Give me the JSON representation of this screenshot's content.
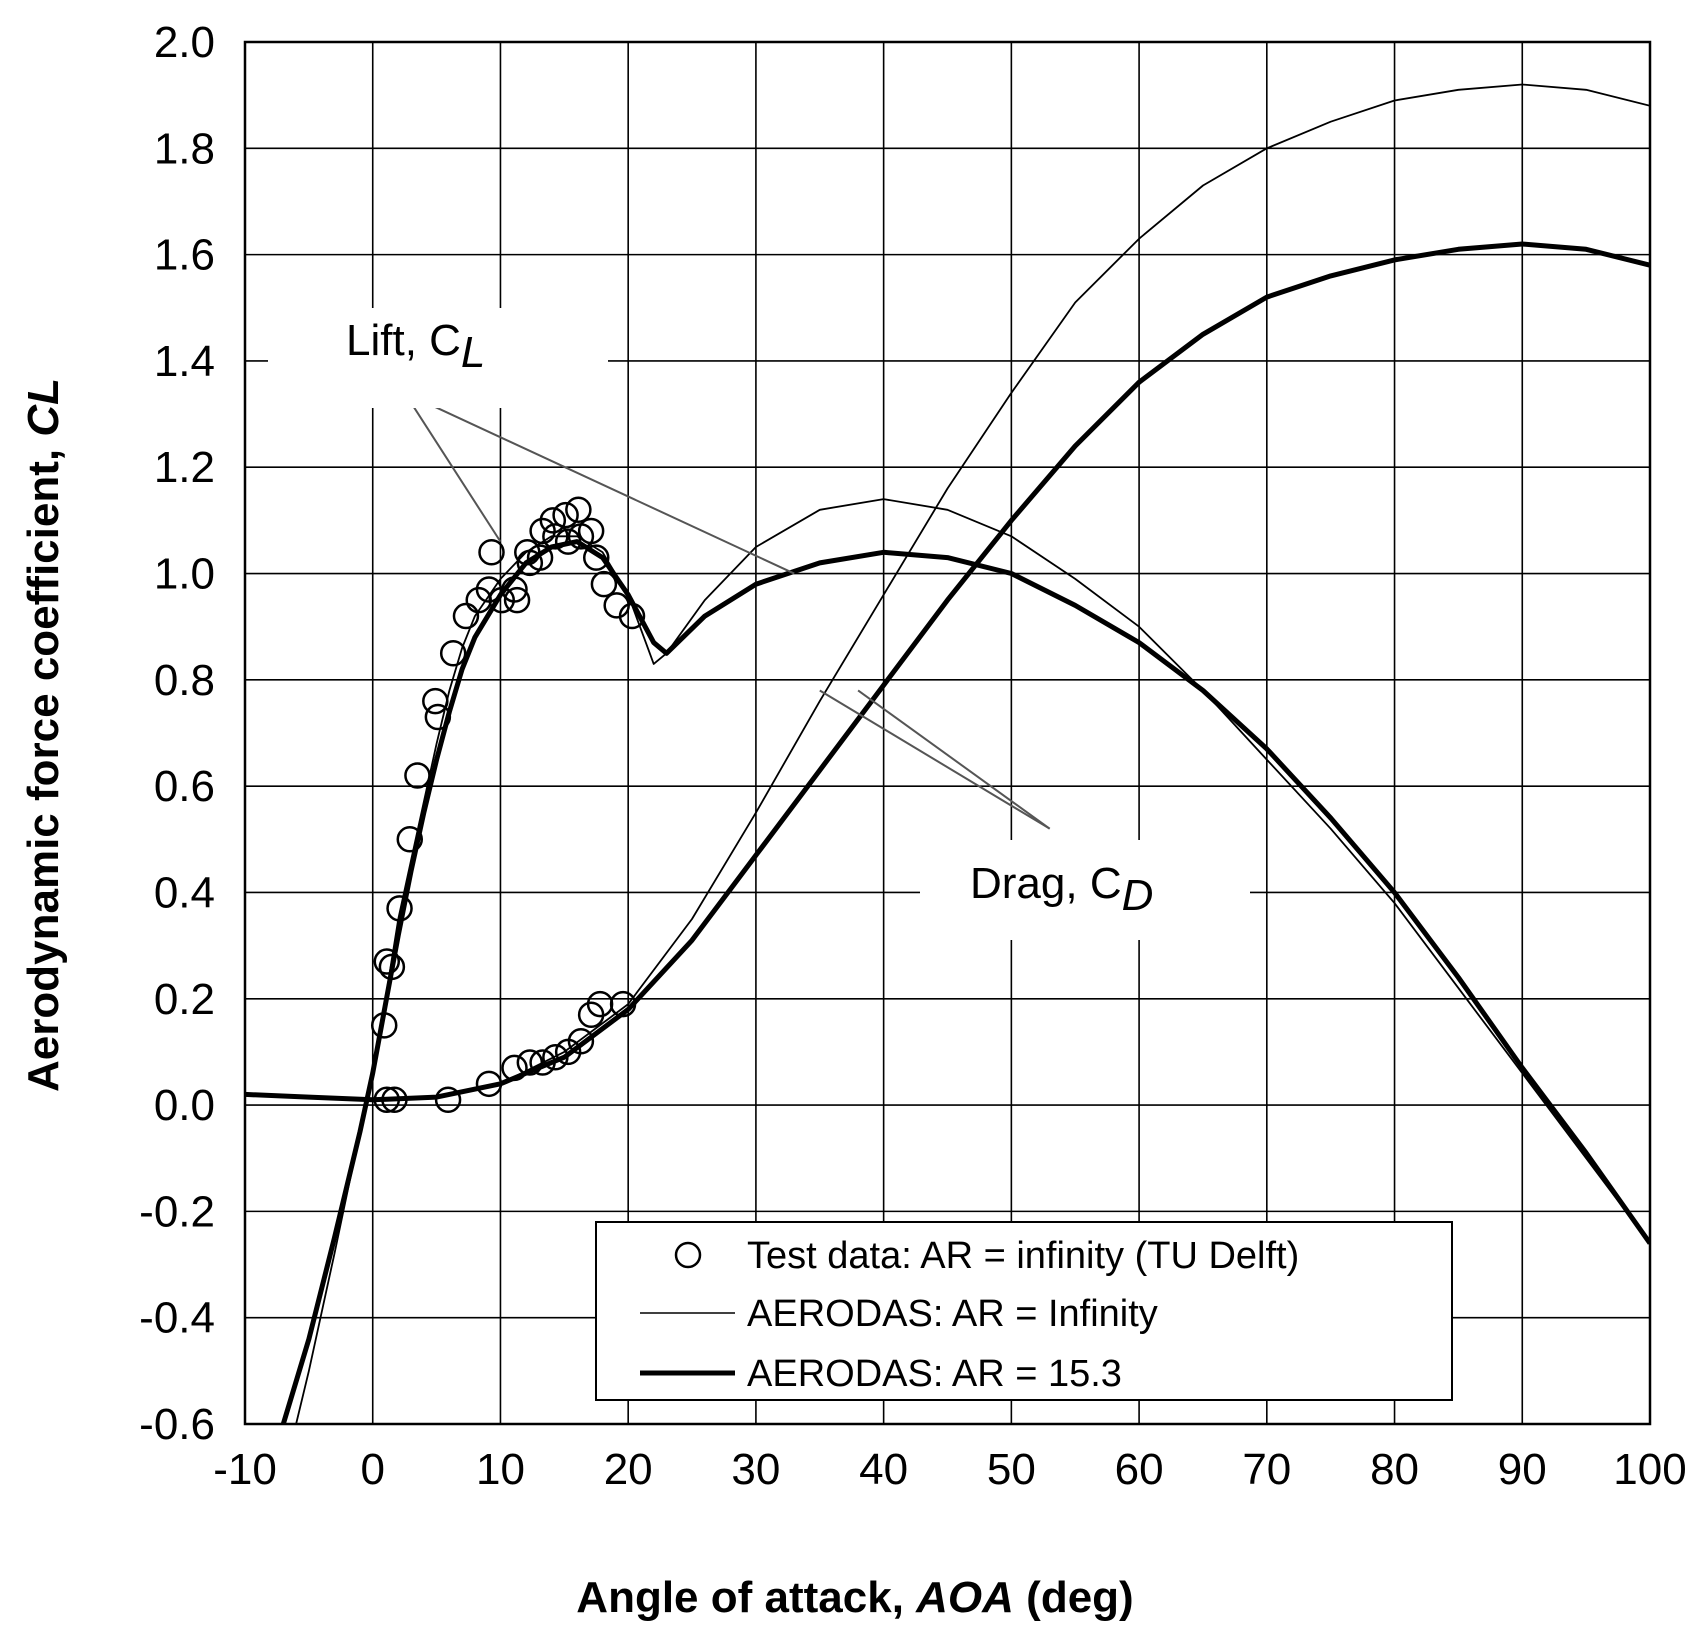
{
  "chart_data": {
    "type": "line",
    "xlabel": "Angle of attack,",
    "xlabel_var": "AOA",
    "xlabel_unit": "(deg)",
    "ylabel": "Aerodynamic force coefficient,",
    "ylabel_var": "CL",
    "xlim": [
      -10,
      100
    ],
    "ylim": [
      -0.6,
      2.0
    ],
    "xticks": [
      -10,
      0,
      10,
      20,
      30,
      40,
      50,
      60,
      70,
      80,
      90,
      100
    ],
    "xtick_labels": [
      "-10",
      "0",
      "10",
      "20",
      "30",
      "40",
      "50",
      "60",
      "70",
      "80",
      "90",
      "100"
    ],
    "yticks": [
      -0.6,
      -0.4,
      -0.2,
      0.0,
      0.2,
      0.4,
      0.6,
      0.8,
      1.0,
      1.2,
      1.4,
      1.6,
      1.8,
      2.0
    ],
    "ytick_labels": [
      "-0.6",
      "-0.4",
      "-0.2",
      "0.0",
      "0.2",
      "0.4",
      "0.6",
      "0.8",
      "1.0",
      "1.2",
      "1.4",
      "1.6",
      "1.8",
      "2.0"
    ],
    "grid": true,
    "annotations": {
      "lift": {
        "text": "Lift, C",
        "sub": "L"
      },
      "drag": {
        "text": "Drag, C",
        "sub": "D"
      }
    },
    "legend": {
      "position": "bottom-right",
      "entries": [
        {
          "label": "Test data: AR = infinity (TU Delft)",
          "style": "marker"
        },
        {
          "label": "AERODAS: AR = Infinity",
          "style": "thin-line"
        },
        {
          "label": "AERODAS: AR = 15.3",
          "style": "thick-line"
        }
      ]
    },
    "series": [
      {
        "name": "Test data: AR = infinity (TU Delft) - Lift",
        "style": "marker",
        "points": [
          [
            0.9,
            0.15
          ],
          [
            1.1,
            0.27
          ],
          [
            1.5,
            0.26
          ],
          [
            2.1,
            0.37
          ],
          [
            2.9,
            0.5
          ],
          [
            3.5,
            0.62
          ],
          [
            4.9,
            0.76
          ],
          [
            5.1,
            0.73
          ],
          [
            6.3,
            0.85
          ],
          [
            7.3,
            0.92
          ],
          [
            8.3,
            0.95
          ],
          [
            9.1,
            0.97
          ],
          [
            9.3,
            1.04
          ],
          [
            10.1,
            0.95
          ],
          [
            11.1,
            0.97
          ],
          [
            11.3,
            0.95
          ],
          [
            12.1,
            1.04
          ],
          [
            12.3,
            1.02
          ],
          [
            13.1,
            1.03
          ],
          [
            13.3,
            1.08
          ],
          [
            14.1,
            1.1
          ],
          [
            14.3,
            1.07
          ],
          [
            15.1,
            1.11
          ],
          [
            15.3,
            1.06
          ],
          [
            16.1,
            1.12
          ],
          [
            16.3,
            1.07
          ],
          [
            17.1,
            1.08
          ],
          [
            17.5,
            1.03
          ],
          [
            18.1,
            0.98
          ],
          [
            19.1,
            0.94
          ],
          [
            20.3,
            0.92
          ]
        ]
      },
      {
        "name": "Test data: AR = infinity (TU Delft) - Drag",
        "style": "marker",
        "points": [
          [
            1.1,
            0.01
          ],
          [
            1.7,
            0.01
          ],
          [
            5.9,
            0.01
          ],
          [
            9.1,
            0.04
          ],
          [
            11.1,
            0.07
          ],
          [
            12.3,
            0.08
          ],
          [
            13.3,
            0.08
          ],
          [
            14.3,
            0.09
          ],
          [
            15.3,
            0.1
          ],
          [
            16.3,
            0.12
          ],
          [
            17.1,
            0.17
          ],
          [
            17.8,
            0.19
          ],
          [
            19.6,
            0.19
          ]
        ]
      },
      {
        "name": "AERODAS: AR = Infinity - Lift",
        "style": "thin-line",
        "points": [
          [
            -6,
            -0.6
          ],
          [
            -5,
            -0.5
          ],
          [
            -3,
            -0.28
          ],
          [
            -1,
            -0.05
          ],
          [
            0,
            0.05
          ],
          [
            1,
            0.2
          ],
          [
            2,
            0.35
          ],
          [
            3,
            0.46
          ],
          [
            4,
            0.57
          ],
          [
            5,
            0.68
          ],
          [
            6,
            0.78
          ],
          [
            7,
            0.86
          ],
          [
            8,
            0.92
          ],
          [
            10,
            0.99
          ],
          [
            12,
            1.04
          ],
          [
            14,
            1.07
          ],
          [
            16,
            1.07
          ],
          [
            18,
            1.04
          ],
          [
            20,
            0.96
          ],
          [
            22,
            0.83
          ],
          [
            23,
            0.85
          ],
          [
            26,
            0.95
          ],
          [
            30,
            1.05
          ],
          [
            35,
            1.12
          ],
          [
            40,
            1.14
          ],
          [
            45,
            1.12
          ],
          [
            50,
            1.07
          ],
          [
            55,
            0.99
          ],
          [
            60,
            0.9
          ],
          [
            65,
            0.78
          ],
          [
            70,
            0.65
          ],
          [
            75,
            0.52
          ],
          [
            80,
            0.38
          ],
          [
            85,
            0.22
          ],
          [
            90,
            0.06
          ],
          [
            95,
            -0.1
          ],
          [
            100,
            -0.26
          ]
        ]
      },
      {
        "name": "AERODAS: AR = 15.3 - Lift",
        "style": "thick-line",
        "points": [
          [
            -7,
            -0.6
          ],
          [
            -5,
            -0.44
          ],
          [
            -3,
            -0.25
          ],
          [
            -1,
            -0.05
          ],
          [
            0,
            0.06
          ],
          [
            1,
            0.19
          ],
          [
            2,
            0.32
          ],
          [
            3,
            0.44
          ],
          [
            4,
            0.55
          ],
          [
            5,
            0.65
          ],
          [
            6,
            0.74
          ],
          [
            7,
            0.82
          ],
          [
            8,
            0.88
          ],
          [
            10,
            0.96
          ],
          [
            12,
            1.02
          ],
          [
            14,
            1.05
          ],
          [
            16,
            1.06
          ],
          [
            18,
            1.03
          ],
          [
            20,
            0.96
          ],
          [
            22,
            0.87
          ],
          [
            23,
            0.85
          ],
          [
            26,
            0.92
          ],
          [
            30,
            0.98
          ],
          [
            35,
            1.02
          ],
          [
            40,
            1.04
          ],
          [
            45,
            1.03
          ],
          [
            50,
            1.0
          ],
          [
            55,
            0.94
          ],
          [
            60,
            0.87
          ],
          [
            65,
            0.78
          ],
          [
            70,
            0.67
          ],
          [
            75,
            0.54
          ],
          [
            80,
            0.4
          ],
          [
            85,
            0.24
          ],
          [
            90,
            0.07
          ],
          [
            95,
            -0.09
          ],
          [
            100,
            -0.26
          ]
        ]
      },
      {
        "name": "AERODAS: AR = Infinity - Drag",
        "style": "thin-line",
        "points": [
          [
            -10,
            0.02
          ],
          [
            -5,
            0.015
          ],
          [
            0,
            0.01
          ],
          [
            5,
            0.015
          ],
          [
            10,
            0.04
          ],
          [
            15,
            0.1
          ],
          [
            20,
            0.19
          ],
          [
            25,
            0.35
          ],
          [
            30,
            0.55
          ],
          [
            35,
            0.76
          ],
          [
            40,
            0.96
          ],
          [
            45,
            1.16
          ],
          [
            50,
            1.34
          ],
          [
            55,
            1.51
          ],
          [
            60,
            1.63
          ],
          [
            65,
            1.73
          ],
          [
            70,
            1.8
          ],
          [
            75,
            1.85
          ],
          [
            80,
            1.89
          ],
          [
            85,
            1.91
          ],
          [
            90,
            1.92
          ],
          [
            95,
            1.91
          ],
          [
            100,
            1.88
          ]
        ]
      },
      {
        "name": "AERODAS: AR = 15.3 - Drag",
        "style": "thick-line",
        "points": [
          [
            -10,
            0.02
          ],
          [
            -5,
            0.015
          ],
          [
            0,
            0.01
          ],
          [
            5,
            0.015
          ],
          [
            10,
            0.04
          ],
          [
            15,
            0.09
          ],
          [
            20,
            0.18
          ],
          [
            25,
            0.31
          ],
          [
            30,
            0.47
          ],
          [
            35,
            0.63
          ],
          [
            40,
            0.79
          ],
          [
            45,
            0.95
          ],
          [
            50,
            1.1
          ],
          [
            55,
            1.24
          ],
          [
            60,
            1.36
          ],
          [
            65,
            1.45
          ],
          [
            70,
            1.52
          ],
          [
            75,
            1.56
          ],
          [
            80,
            1.59
          ],
          [
            85,
            1.61
          ],
          [
            90,
            1.62
          ],
          [
            95,
            1.61
          ],
          [
            100,
            1.58
          ]
        ]
      }
    ]
  }
}
